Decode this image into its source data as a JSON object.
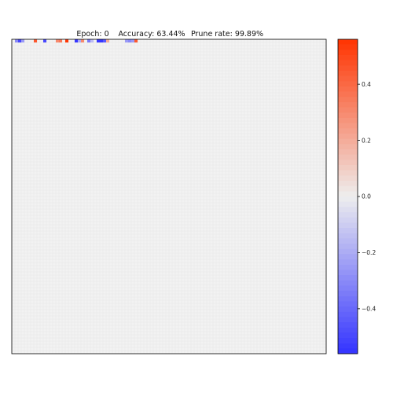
{
  "chart_data": {
    "type": "heatmap",
    "title_parts": [
      {
        "label": "Epoch: 0"
      },
      {
        "label": "Accuracy: 63.44%"
      },
      {
        "label": "Prune rate: 99.89%"
      }
    ],
    "grid": false,
    "legend": "colorbar-right",
    "rows": 100,
    "cols": 100,
    "colormap": "bwr",
    "background_color": "#f2f2f2",
    "cell_border_color": "#e6e6e6",
    "colorbar": {
      "vmin": -0.56,
      "vmax": 0.56,
      "ticks": [
        {
          "value": 0.4,
          "label": "0.4"
        },
        {
          "value": 0.2,
          "label": "0.2"
        },
        {
          "value": 0.0,
          "label": "0.0"
        },
        {
          "value": -0.2,
          "label": "−0.2"
        },
        {
          "value": -0.4,
          "label": "−0.4"
        }
      ],
      "colors": {
        "min": "#3333ff",
        "mid": "#eeeeee",
        "max": "#ff3300"
      }
    },
    "nonzero_cells": [
      {
        "row": 0,
        "col": 1,
        "value": -0.3
      },
      {
        "row": 0,
        "col": 2,
        "value": -0.5
      },
      {
        "row": 0,
        "col": 3,
        "value": -0.25
      },
      {
        "row": 0,
        "col": 7,
        "value": 0.45
      },
      {
        "row": 0,
        "col": 10,
        "value": -0.5
      },
      {
        "row": 0,
        "col": 14,
        "value": 0.3
      },
      {
        "row": 0,
        "col": 15,
        "value": 0.35
      },
      {
        "row": 0,
        "col": 17,
        "value": 0.55
      },
      {
        "row": 0,
        "col": 20,
        "value": -0.55
      },
      {
        "row": 0,
        "col": 21,
        "value": -0.2
      },
      {
        "row": 0,
        "col": 22,
        "value": 0.3
      },
      {
        "row": 0,
        "col": 24,
        "value": -0.35
      },
      {
        "row": 0,
        "col": 25,
        "value": -0.15
      },
      {
        "row": 0,
        "col": 27,
        "value": -0.55
      },
      {
        "row": 0,
        "col": 28,
        "value": -0.55
      },
      {
        "row": 0,
        "col": 29,
        "value": -0.45
      },
      {
        "row": 0,
        "col": 30,
        "value": 0.2
      },
      {
        "row": 0,
        "col": 36,
        "value": -0.25
      },
      {
        "row": 0,
        "col": 37,
        "value": -0.3
      },
      {
        "row": 0,
        "col": 38,
        "value": -0.25
      },
      {
        "row": 0,
        "col": 39,
        "value": 0.45
      }
    ]
  }
}
